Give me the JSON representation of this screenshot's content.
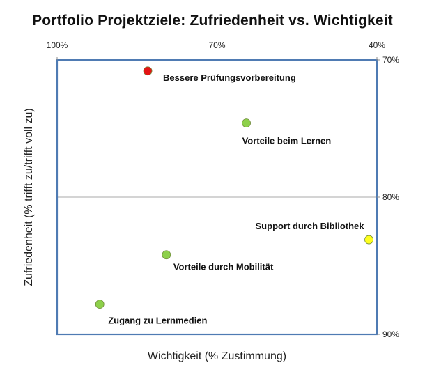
{
  "chart_data": {
    "type": "scatter",
    "title": "Portfolio Projektziele: Zufriedenheit vs. Wichtigkeit",
    "xlabel": "Wichtigkeit (% Zustimmung)",
    "ylabel": "Zufriedenheit (% trifft  zu/trifft voll zu)",
    "xlim": [
      100,
      40
    ],
    "ylim": [
      70,
      90
    ],
    "x_reversed": true,
    "y_reversed": true,
    "x_ticks": [
      {
        "value": 100,
        "label": "100%"
      },
      {
        "value": 70,
        "label": "70%"
      },
      {
        "value": 40,
        "label": "40%"
      }
    ],
    "y_ticks": [
      {
        "value": 70,
        "label": "70%"
      },
      {
        "value": 80,
        "label": "80%"
      },
      {
        "value": 90,
        "label": "90%"
      }
    ],
    "x_axis_position": "top",
    "y_axis_position": "right",
    "quadrant_lines": {
      "x": 70,
      "y": 80
    },
    "points": [
      {
        "label": "Bessere Prüfungsvorbereitung",
        "x": 83,
        "y": 70.8,
        "color": "#e41414"
      },
      {
        "label": "Vorteile beim Lernen",
        "x": 64.5,
        "y": 74.6,
        "color": "#8dd04a"
      },
      {
        "label": "Support durch Bibliothek",
        "x": 41.5,
        "y": 83.1,
        "color": "#ffff1e"
      },
      {
        "label": "Vorteile durch Mobilität",
        "x": 79.5,
        "y": 84.2,
        "color": "#8dd04a"
      },
      {
        "label": "Zugang zu Lernmedien",
        "x": 92,
        "y": 87.8,
        "color": "#8dd04a"
      }
    ],
    "frame_color": "#4f7bb3"
  }
}
